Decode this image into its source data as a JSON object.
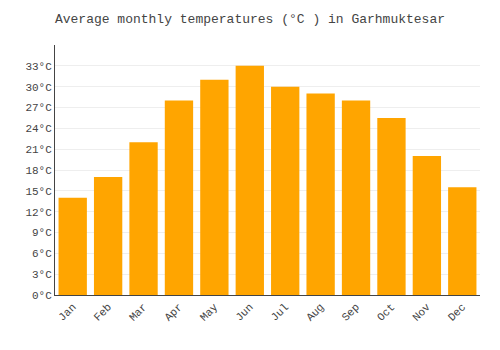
{
  "chart_data": {
    "type": "bar",
    "title": "Average monthly temperatures (°C ) in Garhmuktesar",
    "categories": [
      "Jan",
      "Feb",
      "Mar",
      "Apr",
      "May",
      "Jun",
      "Jul",
      "Aug",
      "Sep",
      "Oct",
      "Nov",
      "Dec"
    ],
    "values": [
      14.0,
      17.0,
      22.0,
      28.0,
      31.0,
      33.0,
      30.0,
      29.0,
      28.0,
      25.5,
      20.0,
      15.5
    ],
    "color": "#FFA500",
    "ylim": [
      0,
      36
    ],
    "yticks": [
      {
        "value": 0,
        "label": "0°C"
      },
      {
        "value": 3,
        "label": "3°C"
      },
      {
        "value": 6,
        "label": "6°C"
      },
      {
        "value": 9,
        "label": "9°C"
      },
      {
        "value": 12,
        "label": "12°C"
      },
      {
        "value": 15,
        "label": "15°C"
      },
      {
        "value": 18,
        "label": "18°C"
      },
      {
        "value": 21,
        "label": "21°C"
      },
      {
        "value": 24,
        "label": "24°C"
      },
      {
        "value": 27,
        "label": "27°C"
      },
      {
        "value": 30,
        "label": "30°C"
      },
      {
        "value": 33,
        "label": "33°C"
      }
    ],
    "grid": true
  }
}
